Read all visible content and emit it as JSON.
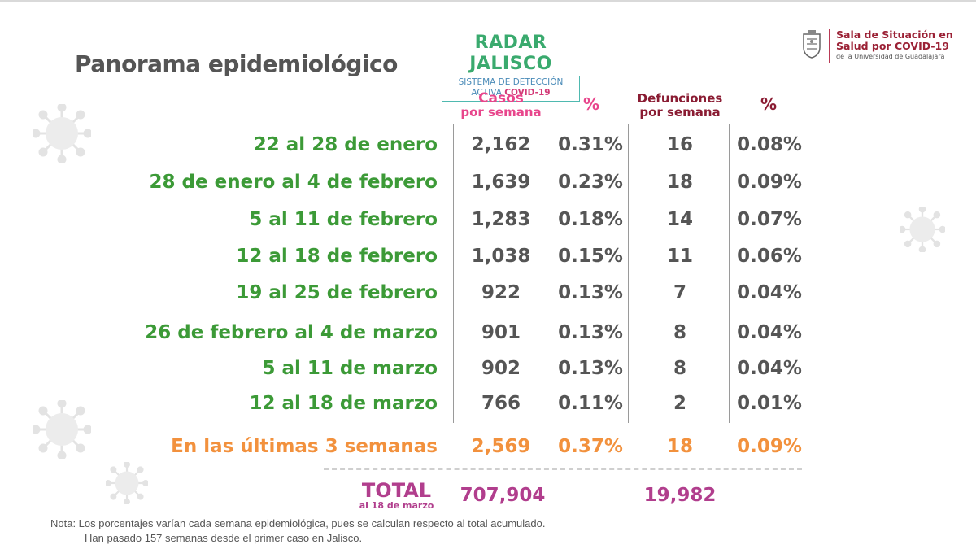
{
  "header": {
    "title": "Panorama epidemiológico",
    "radar": {
      "name": "RADAR JALISCO",
      "line1": "SISTEMA DE DETECCIÓN",
      "line2_prefix": "ACTIVA ",
      "line2_highlight": "COVID-19"
    },
    "sala": {
      "line1": "Sala de Situación en",
      "line2": "Salud por COVID-19",
      "line3": "de la Universidad de Guadalajara"
    }
  },
  "table": {
    "col_casos_line1": "Casos",
    "col_casos_line2": "por semana",
    "col_pct1": "%",
    "col_def_line1": "Defunciones",
    "col_def_line2": "por semana",
    "col_pct2": "%",
    "rows": [
      {
        "period": "22 al 28 de enero",
        "casos": "2,162",
        "pct_casos": "0.31%",
        "defunciones": "16",
        "pct_def": "0.08%"
      },
      {
        "period": "28 de enero al 4 de febrero",
        "casos": "1,639",
        "pct_casos": "0.23%",
        "defunciones": "18",
        "pct_def": "0.09%"
      },
      {
        "period": "5 al 11 de febrero",
        "casos": "1,283",
        "pct_casos": "0.18%",
        "defunciones": "14",
        "pct_def": "0.07%"
      },
      {
        "period": "12 al 18 de febrero",
        "casos": "1,038",
        "pct_casos": "0.15%",
        "defunciones": "11",
        "pct_def": "0.06%"
      },
      {
        "period": "19 al 25 de febrero",
        "casos": "922",
        "pct_casos": "0.13%",
        "defunciones": "7",
        "pct_def": "0.04%"
      },
      {
        "period": "26 de febrero al 4 de marzo",
        "casos": "901",
        "pct_casos": "0.13%",
        "defunciones": "8",
        "pct_def": "0.04%"
      },
      {
        "period": "5 al 11 de marzo",
        "casos": "902",
        "pct_casos": "0.13%",
        "defunciones": "8",
        "pct_def": "0.04%"
      },
      {
        "period": "12 al 18 de marzo",
        "casos": "766",
        "pct_casos": "0.11%",
        "defunciones": "2",
        "pct_def": "0.01%"
      }
    ],
    "summary": {
      "period": "En las últimas 3 semanas",
      "casos": "2,569",
      "pct_casos": "0.37%",
      "defunciones": "18",
      "pct_def": "0.09%"
    },
    "total": {
      "label": "TOTAL",
      "sublabel": "al 18 de marzo",
      "casos": "707,904",
      "defunciones": "19,982"
    }
  },
  "note": {
    "line1": "Nota: Los porcentajes varían cada semana epidemiológica, pues se calculan respecto al total acumulado.",
    "line2": "Han pasado 157 semanas desde el primer caso en Jalisco."
  },
  "colors": {
    "period_green": "#3c9a37",
    "summary_orange": "#f2913d",
    "casos_pink": "#e8468c",
    "defunciones_maroon": "#8a1c33",
    "total_purple": "#b13e8d"
  },
  "icons": [
    "virus-icon",
    "crest-icon"
  ]
}
